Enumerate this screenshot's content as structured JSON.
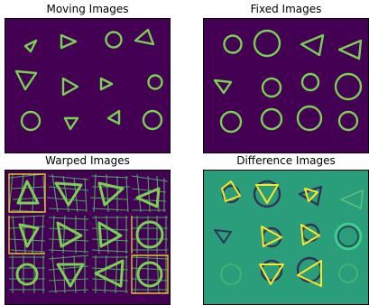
{
  "panels": [
    {
      "id": "moving",
      "title": "Moving Images"
    },
    {
      "id": "fixed",
      "title": "Fixed Images"
    },
    {
      "id": "warped",
      "title": "Warped Images"
    },
    {
      "id": "difference",
      "title": "Difference Images"
    }
  ],
  "colors": {
    "background_dark": "#440154",
    "shape_stroke": "#7ad151",
    "shape_glow": "#21918c",
    "grid_line": "#5ec962",
    "grid_highlight": "#fde725",
    "difference_background": "#2a9d7a",
    "difference_positive": "#fde725",
    "difference_negative": "#31345a"
  }
}
